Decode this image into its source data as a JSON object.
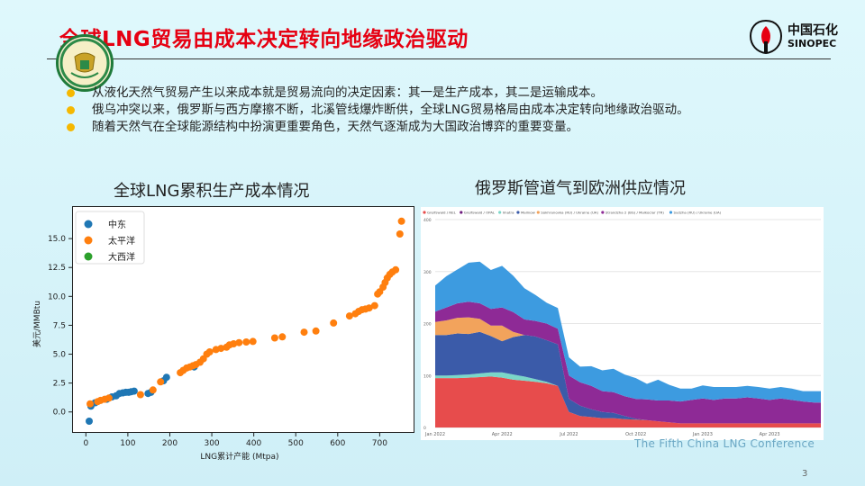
{
  "header": {
    "title": "全球LNG贸易由成本决定转向地缘政治驱动",
    "logo_cn": "中国石化",
    "logo_en": "SINOPEC"
  },
  "bullets": [
    "从液化天然气贸易产生以来成本就是贸易流向的决定因素：其一是生产成本，其二是运输成本。",
    "俄乌冲突以来，俄罗斯与西方摩擦不断，北溪管线爆炸断供，全球LNG贸易格局由成本决定转向地缘政治驱动。",
    "随着天然气在全球能源结构中扮演更重要角色，天然气逐渐成为大国政治博弈的重要变量。"
  ],
  "charts_titles": {
    "left": "全球LNG累积生产成本情况",
    "right": "俄罗斯管道气到欧洲供应情况"
  },
  "footer": {
    "conference": "The Fifth China LNG Conference",
    "page": "3"
  },
  "chart_data": [
    {
      "type": "scatter",
      "xlabel": "LNG累计产能 (Mtpa)",
      "ylabel": "美元/MMBtu",
      "xlim": [
        -20,
        770
      ],
      "ylim": [
        -1.5,
        17.5
      ],
      "xticks": [
        0,
        100,
        200,
        300,
        400,
        500,
        600,
        700
      ],
      "yticks": [
        0.0,
        2.5,
        5.0,
        7.5,
        10.0,
        12.5,
        15.0
      ],
      "ytick_labels": [
        "0.0",
        "2.5",
        "5.0",
        "7.5",
        "10.0",
        "12.5",
        "15.0"
      ],
      "legend_position": "top-left",
      "series": [
        {
          "name": "中东",
          "color": "#1f77b4",
          "points": [
            [
              8,
              -0.8
            ],
            [
              12,
              0.5
            ],
            [
              22,
              0.8
            ],
            [
              50,
              1.1
            ],
            [
              62,
              1.3
            ],
            [
              72,
              1.4
            ],
            [
              80,
              1.6
            ],
            [
              88,
              1.65
            ],
            [
              95,
              1.7
            ],
            [
              102,
              1.7
            ],
            [
              108,
              1.75
            ],
            [
              115,
              1.8
            ],
            [
              148,
              1.6
            ],
            [
              155,
              1.7
            ],
            [
              185,
              2.7
            ],
            [
              192,
              3.0
            ],
            [
              258,
              3.9
            ]
          ]
        },
        {
          "name": "太平洋",
          "color": "#ff7f0e",
          "points": [
            [
              10,
              0.7
            ],
            [
              28,
              0.9
            ],
            [
              35,
              1.0
            ],
            [
              45,
              1.1
            ],
            [
              55,
              1.2
            ],
            [
              130,
              1.5
            ],
            [
              160,
              1.9
            ],
            [
              178,
              2.6
            ],
            [
              225,
              3.4
            ],
            [
              232,
              3.6
            ],
            [
              240,
              3.8
            ],
            [
              248,
              3.9
            ],
            [
              255,
              4.0
            ],
            [
              262,
              4.1
            ],
            [
              272,
              4.3
            ],
            [
              280,
              4.6
            ],
            [
              288,
              5.0
            ],
            [
              295,
              5.2
            ],
            [
              310,
              5.4
            ],
            [
              322,
              5.5
            ],
            [
              335,
              5.6
            ],
            [
              342,
              5.8
            ],
            [
              352,
              5.9
            ],
            [
              365,
              6.0
            ],
            [
              382,
              6.05
            ],
            [
              398,
              6.1
            ],
            [
              450,
              6.4
            ],
            [
              468,
              6.5
            ],
            [
              520,
              6.9
            ],
            [
              548,
              7.0
            ],
            [
              590,
              7.7
            ],
            [
              628,
              8.3
            ],
            [
              642,
              8.5
            ],
            [
              650,
              8.7
            ],
            [
              658,
              8.85
            ],
            [
              666,
              8.9
            ],
            [
              675,
              9.0
            ],
            [
              688,
              9.2
            ],
            [
              695,
              10.2
            ],
            [
              700,
              10.4
            ],
            [
              708,
              10.8
            ],
            [
              713,
              11.2
            ],
            [
              718,
              11.6
            ],
            [
              724,
              11.9
            ],
            [
              730,
              12.1
            ],
            [
              738,
              12.3
            ],
            [
              748,
              15.4
            ],
            [
              752,
              16.5
            ]
          ]
        },
        {
          "name": "大西洋",
          "color": "#2ca02c",
          "points": []
        }
      ]
    },
    {
      "type": "area",
      "stacked": true,
      "ylim": [
        0,
        400
      ],
      "yticks": [
        0,
        100,
        200,
        300,
        400
      ],
      "x_tick_labels": [
        "Jan 2022",
        "Apr 2022",
        "Jul 2022",
        "Oct 2022",
        "Jan 2023",
        "Apr 2023"
      ],
      "x_ticks_at": [
        0,
        3,
        6,
        9,
        12,
        15
      ],
      "x_range": [
        0,
        17.3
      ],
      "legend_position": "top",
      "x": [
        0,
        0.5,
        1,
        1.5,
        2,
        2.5,
        3,
        3.5,
        4,
        4.5,
        5,
        5.5,
        6,
        6.5,
        7,
        7.5,
        8,
        8.5,
        9,
        9.5,
        10,
        10.5,
        11,
        11.5,
        12,
        12.5,
        13,
        13.5,
        14,
        14.5,
        15,
        15.5,
        16,
        16.5,
        17,
        17.3
      ],
      "series": [
        {
          "name": "Greifswald / NEL",
          "color": "#e74c4c",
          "values": [
            95,
            95,
            95,
            96,
            97,
            98,
            96,
            92,
            90,
            88,
            85,
            80,
            30,
            22,
            20,
            18,
            18,
            16,
            15,
            14,
            12,
            10,
            8,
            8,
            8,
            8,
            8,
            8,
            8,
            8,
            8,
            8,
            8,
            8,
            8,
            8
          ]
        },
        {
          "name": "Greifswald / OPAL",
          "color": "#6e1b7e",
          "values": [
            0,
            0,
            0,
            0,
            0,
            0,
            0,
            0,
            0,
            0,
            0,
            0,
            0,
            0,
            0,
            0,
            0,
            0,
            0,
            0,
            0,
            0,
            0,
            0,
            0,
            0,
            0,
            0,
            0,
            0,
            0,
            0,
            0,
            0,
            0,
            0
          ]
        },
        {
          "name": "Imatra",
          "color": "#7ad7c8",
          "values": [
            5,
            5,
            6,
            6,
            7,
            8,
            10,
            10,
            8,
            5,
            3,
            0,
            0,
            0,
            0,
            0,
            0,
            0,
            0,
            0,
            0,
            0,
            0,
            0,
            0,
            0,
            0,
            0,
            0,
            0,
            0,
            0,
            0,
            0,
            0,
            0
          ]
        },
        {
          "name": "Mallnow",
          "color": "#3b5ba9",
          "values": [
            78,
            78,
            80,
            78,
            80,
            70,
            60,
            72,
            80,
            82,
            80,
            80,
            25,
            20,
            15,
            12,
            10,
            6,
            2,
            0,
            0,
            0,
            0,
            0,
            0,
            0,
            0,
            0,
            0,
            0,
            0,
            0,
            0,
            0,
            0,
            0
          ]
        },
        {
          "name": "Sokhranovka (RU) / Ukraine (UA)",
          "color": "#f2a35c",
          "values": [
            25,
            28,
            30,
            32,
            25,
            20,
            30,
            10,
            0,
            0,
            0,
            0,
            0,
            0,
            0,
            0,
            0,
            0,
            0,
            0,
            0,
            0,
            0,
            0,
            0,
            0,
            0,
            0,
            0,
            0,
            0,
            0,
            0,
            0,
            0,
            0
          ]
        },
        {
          "name": "Strandzha 2 (BG) / Malkoclar (TR)",
          "color": "#8e2a96",
          "values": [
            20,
            25,
            28,
            30,
            30,
            32,
            35,
            38,
            30,
            30,
            32,
            30,
            45,
            45,
            45,
            40,
            40,
            38,
            38,
            40,
            40,
            42,
            42,
            45,
            48,
            45,
            48,
            48,
            50,
            48,
            45,
            48,
            45,
            42,
            40,
            40
          ]
        },
        {
          "name": "Sudzha (RU) / Ukraine (UA)",
          "color": "#3d9be0",
          "values": [
            50,
            60,
            65,
            75,
            80,
            75,
            80,
            70,
            60,
            50,
            40,
            40,
            35,
            30,
            38,
            40,
            45,
            42,
            40,
            30,
            40,
            30,
            25,
            22,
            25,
            25,
            22,
            22,
            22,
            22,
            22,
            22,
            22,
            20,
            22,
            22
          ]
        }
      ]
    }
  ]
}
